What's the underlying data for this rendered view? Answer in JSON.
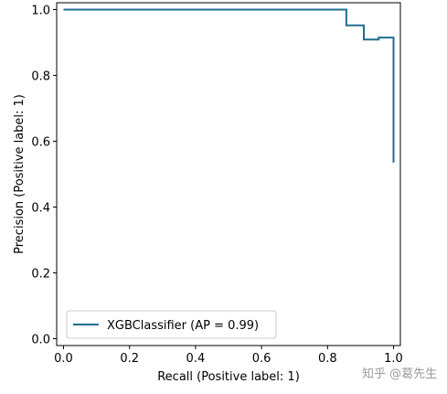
{
  "chart_data": {
    "type": "line",
    "drawstyle": "steps-post",
    "title": "",
    "xlabel": "Recall (Positive label: 1)",
    "ylabel": "Precision (Positive label: 1)",
    "xlim": [
      0.0,
      1.0
    ],
    "ylim": [
      0.0,
      1.0
    ],
    "xticks": [
      0.0,
      0.2,
      0.4,
      0.6,
      0.8,
      1.0
    ],
    "yticks": [
      0.0,
      0.2,
      0.4,
      0.6,
      0.8,
      1.0
    ],
    "xtick_labels": [
      "0.0",
      "0.2",
      "0.4",
      "0.6",
      "0.8",
      "1.0"
    ],
    "ytick_labels": [
      "0.0",
      "0.2",
      "0.4",
      "0.6",
      "0.8",
      "1.0"
    ],
    "grid": false,
    "legend_position": "lower-left",
    "series": [
      {
        "name": "XGBClassifier (AP = 0.99)",
        "color": "#1f6d8f",
        "points": [
          [
            1.0,
            0.535
          ],
          [
            1.0,
            0.915
          ],
          [
            0.955,
            0.915
          ],
          [
            0.955,
            0.909
          ],
          [
            0.91,
            0.909
          ],
          [
            0.91,
            0.952
          ],
          [
            0.857,
            0.952
          ],
          [
            0.857,
            1.0
          ],
          [
            0.0,
            1.0
          ]
        ]
      }
    ]
  },
  "watermark": "知乎 @葛先生"
}
